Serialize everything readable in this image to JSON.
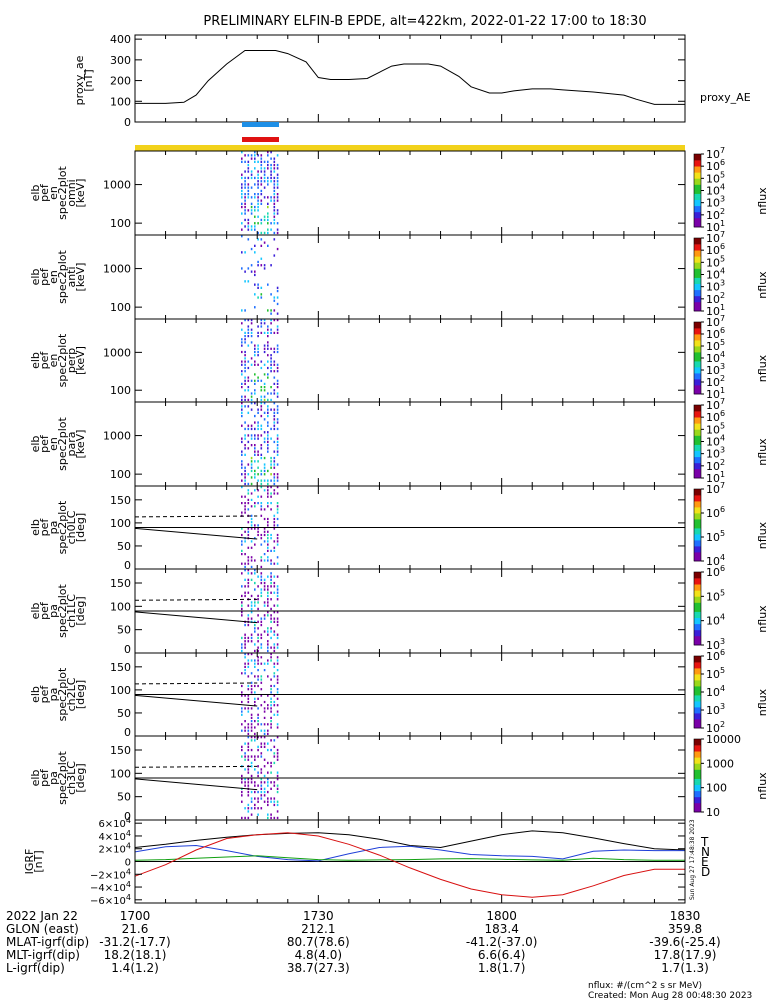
{
  "title": "PRELIMINARY ELFIN-B EPDE, alt=422km, 2022-01-22 17:00 to 18:30",
  "colors": {
    "fov_bar": "#f2d21b",
    "sci_blue": "#1e8fe6",
    "sci_red": "#e01212",
    "grf_T": "#000000",
    "grf_N": "#1f3fd8",
    "grf_E": "#10a010",
    "grf_D": "#d81010"
  },
  "chart_data": [
    {
      "type": "line",
      "panel": "proxy_ae",
      "ylabel": [
        "proxy_ae",
        "[nT]"
      ],
      "yticks": [
        "400",
        "300",
        "200",
        "100",
        "0"
      ],
      "ylim": [
        0,
        420
      ],
      "legend": "proxy_AE",
      "x_minutes": [
        0,
        5,
        8,
        10,
        12,
        15,
        18,
        20,
        22,
        23,
        25,
        28,
        30,
        32,
        35,
        38,
        40,
        42,
        44,
        46,
        48,
        50,
        53,
        55,
        58,
        60,
        62,
        65,
        68,
        70,
        75,
        80,
        82,
        85,
        88,
        90
      ],
      "values": [
        90,
        90,
        95,
        130,
        200,
        280,
        345,
        345,
        345,
        345,
        330,
        290,
        215,
        205,
        205,
        210,
        240,
        270,
        280,
        280,
        280,
        270,
        220,
        170,
        140,
        140,
        150,
        160,
        160,
        155,
        145,
        130,
        110,
        85,
        85,
        85
      ]
    },
    {
      "type": "heatmap",
      "panel": "spec_omni",
      "ylabel": [
        "elb",
        "pef",
        "en",
        "spec2plot",
        "omni",
        "[keV]"
      ],
      "yticks": [
        "1000",
        "100"
      ],
      "colorbar_ticks": [
        "10^7",
        "10^6",
        "10^5",
        "10^4",
        "10^3",
        "10^2",
        "10^1"
      ],
      "colorbar_label": "nflux",
      "active_interval": [
        "17:19",
        "17:25"
      ]
    },
    {
      "type": "heatmap",
      "panel": "spec_anti",
      "ylabel": [
        "elb",
        "pef",
        "en",
        "spec2plot",
        "anti",
        "[keV]"
      ],
      "yticks": [
        "1000",
        "100"
      ],
      "colorbar_ticks": [
        "10^7",
        "10^6",
        "10^5",
        "10^4",
        "10^3",
        "10^2",
        "10^1"
      ],
      "colorbar_label": "nflux"
    },
    {
      "type": "heatmap",
      "panel": "spec_perp",
      "ylabel": [
        "elb",
        "pef",
        "en",
        "spec2plot",
        "perp",
        "[keV]"
      ],
      "yticks": [
        "1000",
        "100"
      ],
      "colorbar_ticks": [
        "10^7",
        "10^6",
        "10^5",
        "10^4",
        "10^3",
        "10^2",
        "10^1"
      ],
      "colorbar_label": "nflux"
    },
    {
      "type": "heatmap",
      "panel": "spec_para",
      "ylabel": [
        "elb",
        "pef",
        "en",
        "spec2plot",
        "para",
        "[keV]"
      ],
      "yticks": [
        "1000",
        "100"
      ],
      "colorbar_ticks": [
        "10^7",
        "10^6",
        "10^5",
        "10^4",
        "10^3",
        "10^2",
        "10^1"
      ],
      "colorbar_label": "nflux"
    },
    {
      "type": "heatmap",
      "panel": "pa_ch0",
      "ylabel": [
        "elb",
        "pef",
        "pa",
        "spec2plot",
        "ch0LC",
        "[deg]"
      ],
      "yticks": [
        "150",
        "100",
        "50",
        "0"
      ],
      "ylim": [
        0,
        180
      ],
      "colorbar_ticks": [
        "10^7",
        "10^6",
        "10^5",
        "10^4"
      ],
      "colorbar_label": "nflux",
      "loss_cone": {
        "x_minutes": [
          0,
          20
        ],
        "values": [
          88,
          65
        ]
      },
      "anti_loss_cone": {
        "x_minutes": [
          0,
          20
        ],
        "values": [
          113,
          115
        ]
      },
      "ninety_line": 90
    },
    {
      "type": "heatmap",
      "panel": "pa_ch1",
      "ylabel": [
        "elb",
        "pef",
        "pa",
        "spec2plot",
        "ch1LC",
        "[deg]"
      ],
      "yticks": [
        "150",
        "100",
        "50",
        "0"
      ],
      "ylim": [
        0,
        180
      ],
      "colorbar_ticks": [
        "10^6",
        "10^5",
        "10^4",
        "10^3"
      ],
      "colorbar_label": "nflux"
    },
    {
      "type": "heatmap",
      "panel": "pa_ch2",
      "ylabel": [
        "elb",
        "pef",
        "pa",
        "spec2plot",
        "ch2LC",
        "[deg]"
      ],
      "yticks": [
        "150",
        "100",
        "50",
        "0"
      ],
      "ylim": [
        0,
        180
      ],
      "colorbar_ticks": [
        "10^6",
        "10^5",
        "10^4",
        "10^3",
        "10^2"
      ],
      "colorbar_label": "nflux"
    },
    {
      "type": "heatmap",
      "panel": "pa_ch3",
      "ylabel": [
        "elb",
        "pef",
        "pa",
        "spec2plot",
        "ch3LC",
        "[deg]"
      ],
      "yticks": [
        "150",
        "100",
        "50",
        "0"
      ],
      "ylim": [
        0,
        180
      ],
      "colorbar_ticks": [
        "10000",
        "1000",
        "100",
        "10"
      ],
      "colorbar_label": "nflux"
    },
    {
      "type": "line",
      "panel": "igrf",
      "ylabel": [
        "IGRF",
        "[nT]"
      ],
      "yticks": [
        "6×10^4",
        "4×10^4",
        "2×10^4",
        "0",
        "−2×10^4",
        "−4×10^4",
        "−6×10^4"
      ],
      "ylim": [
        -65000,
        65000
      ],
      "legend": [
        "T",
        "N",
        "E",
        "D"
      ],
      "x_minutes": [
        0,
        5,
        10,
        15,
        20,
        25,
        30,
        35,
        40,
        45,
        50,
        55,
        60,
        65,
        70,
        75,
        80,
        85,
        90
      ],
      "series": [
        {
          "name": "T",
          "values": [
            22000,
            27000,
            33000,
            38000,
            42000,
            44000,
            45000,
            42000,
            35000,
            25000,
            22000,
            32000,
            42000,
            48000,
            45000,
            37000,
            28000,
            20000,
            18000
          ]
        },
        {
          "name": "N",
          "values": [
            15000,
            23000,
            25000,
            17000,
            8000,
            3000,
            1000,
            12000,
            22000,
            24000,
            18000,
            11000,
            9000,
            8000,
            4000,
            16000,
            18000,
            17000,
            17000
          ]
        },
        {
          "name": "E",
          "values": [
            2000,
            3000,
            5000,
            7000,
            9000,
            6000,
            3000,
            2000,
            2500,
            3000,
            4000,
            4500,
            3500,
            2500,
            2000,
            5000,
            3000,
            2000,
            2000
          ]
        },
        {
          "name": "D",
          "values": [
            -23000,
            -5000,
            18000,
            36000,
            42000,
            45000,
            40000,
            27000,
            10000,
            -10000,
            -28000,
            -43000,
            -52000,
            -56000,
            -52000,
            -38000,
            -22000,
            -12000,
            -12000
          ]
        }
      ]
    }
  ],
  "x_axis": {
    "ticks": [
      "1700",
      "1730",
      "1800",
      "1830"
    ],
    "rows": [
      {
        "label": "2022 Jan 22",
        "vals": [
          "",
          "",
          "",
          ""
        ]
      },
      {
        "label": "GLON (east)",
        "vals": [
          "21.6",
          "212.1",
          "183.4",
          "359.8"
        ]
      },
      {
        "label": "MLAT-igrf(dip)",
        "vals": [
          "-31.2(-17.7)",
          "80.7(78.6)",
          "-41.2(-37.0)",
          "-39.6(-25.4)"
        ]
      },
      {
        "label": "MLT-igrf(dip)",
        "vals": [
          "18.2(18.1)",
          "4.8(4.0)",
          "6.6(6.4)",
          "17.8(17.9)"
        ]
      },
      {
        "label": "L-igrf(dip)",
        "vals": [
          "1.4(1.2)",
          "38.7(27.3)",
          "1.8(1.7)",
          "1.7(1.3)"
        ]
      }
    ]
  },
  "igrf_side_text": "Sun Aug 27 17:48:38 2023",
  "footer": {
    "units": "nflux: #/(cm^2 s sr MeV)",
    "created": "Created: Mon Aug 28 00:48:30 2023"
  }
}
